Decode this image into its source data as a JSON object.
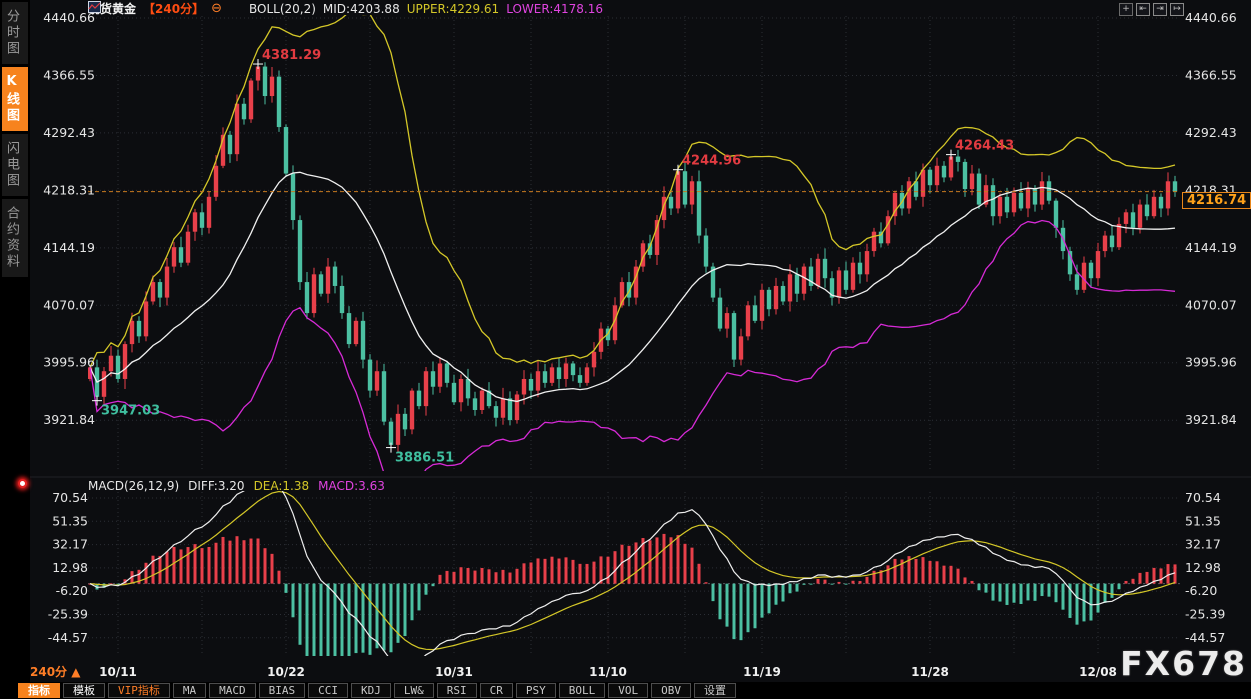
{
  "header": {
    "symbol": "现货黄金",
    "period": "【240分】",
    "minus_icon": "⊖",
    "boll_label": "BOLL(20,2)",
    "mid": "MID:4203.88",
    "upper": "UPPER:4229.61",
    "lower": "LOWER:4178.16"
  },
  "window_controls": [
    {
      "name": "crosshair-icon",
      "glyph": "+"
    },
    {
      "name": "pan-left-icon",
      "glyph": "⇤"
    },
    {
      "name": "pan-play-icon",
      "glyph": "⇥"
    },
    {
      "name": "pan-right-icon",
      "glyph": "↦"
    }
  ],
  "sidebar": {
    "items": [
      {
        "label": "分时图",
        "active": false
      },
      {
        "label": "K线图",
        "active": true
      },
      {
        "label": "闪电图",
        "active": false
      },
      {
        "label": "合约资料",
        "active": false
      }
    ]
  },
  "macd_header": {
    "title": "MACD(26,12,9)",
    "diff": "DIFF:3.20",
    "dea": "DEA:1.38",
    "macd": "MACD:3.63"
  },
  "price_tag": "4216.74",
  "footer": {
    "period": "240分",
    "arrow": "▲"
  },
  "toolbar": {
    "buttons": [
      {
        "label": "指标",
        "style": "active"
      },
      {
        "label": "模板",
        "style": "plain"
      },
      {
        "label": "VIP指标",
        "style": "vip"
      },
      {
        "label": "MA",
        "style": ""
      },
      {
        "label": "MACD",
        "style": ""
      },
      {
        "label": "BIAS",
        "style": ""
      },
      {
        "label": "CCI",
        "style": ""
      },
      {
        "label": "KDJ",
        "style": ""
      },
      {
        "label": "LW&",
        "style": ""
      },
      {
        "label": "RSI",
        "style": ""
      },
      {
        "label": "CR",
        "style": ""
      },
      {
        "label": "PSY",
        "style": ""
      },
      {
        "label": "BOLL",
        "style": ""
      },
      {
        "label": "VOL",
        "style": ""
      },
      {
        "label": "OBV",
        "style": ""
      },
      {
        "label": "设置",
        "style": ""
      }
    ]
  },
  "watermark": "FX678",
  "colors": {
    "up": "#e8404a",
    "down": "#4cc0a2",
    "boll_upper": "#d4c728",
    "boll_mid": "#f0f0f0",
    "boll_lower": "#d62ad6",
    "accent_orange": "#ff7e27",
    "grid": "#2b2e35",
    "axis_text": "#e5e5e5",
    "annotation_high": "#e23b41",
    "annotation_low": "#3fbf9f",
    "last_price_line": "#c87a1e",
    "bg": "#0c0d10"
  },
  "chart_data": {
    "type": "candlestick",
    "title": "现货黄金 240分 K线 + BOLL(20,2) / MACD(26,12,9)",
    "price_axis": {
      "labels": [
        4440.66,
        4366.55,
        4292.43,
        4218.31,
        4144.19,
        4070.07,
        3995.96,
        3921.84
      ]
    },
    "macd_axis": {
      "labels": [
        70.54,
        51.35,
        32.17,
        12.98,
        -6.2,
        -25.39,
        -44.57
      ]
    },
    "x_axis": {
      "labels": [
        "10/11",
        "10/22",
        "10/31",
        "11/10",
        "11/19",
        "11/28",
        "12/08"
      ],
      "label_indices": [
        4,
        28,
        52,
        74,
        96,
        120,
        144
      ]
    },
    "closes": [
      3990,
      3952,
      3985,
      4005,
      3975,
      4020,
      4050,
      4030,
      4075,
      4100,
      4080,
      4120,
      4145,
      4125,
      4165,
      4190,
      4170,
      4210,
      4250,
      4290,
      4265,
      4330,
      4310,
      4360,
      4378,
      4340,
      4365,
      4300,
      4240,
      4180,
      4100,
      4060,
      4110,
      4085,
      4120,
      4095,
      4060,
      4020,
      4050,
      4000,
      3960,
      3985,
      3920,
      3890,
      3930,
      3910,
      3960,
      3940,
      3985,
      3965,
      3995,
      3970,
      3945,
      3975,
      3950,
      3935,
      3960,
      3940,
      3925,
      3950,
      3922,
      3955,
      3975,
      3960,
      3985,
      3970,
      3990,
      3975,
      3995,
      3980,
      3970,
      3990,
      4010,
      4040,
      4025,
      4070,
      4100,
      4080,
      4120,
      4150,
      4135,
      4180,
      4210,
      4195,
      4243,
      4200,
      4230,
      4160,
      4120,
      4080,
      4040,
      4060,
      4000,
      4030,
      4070,
      4050,
      4090,
      4065,
      4095,
      4075,
      4110,
      4085,
      4120,
      4095,
      4130,
      4105,
      4080,
      4115,
      4090,
      4125,
      4110,
      4140,
      4165,
      4150,
      4185,
      4215,
      4195,
      4230,
      4210,
      4245,
      4225,
      4250,
      4235,
      4262,
      4255,
      4220,
      4240,
      4200,
      4225,
      4185,
      4210,
      4190,
      4215,
      4195,
      4220,
      4200,
      4230,
      4205,
      4170,
      4140,
      4110,
      4090,
      4125,
      4105,
      4140,
      4160,
      4145,
      4175,
      4190,
      4170,
      4200,
      4185,
      4210,
      4195,
      4230,
      4216.74
    ],
    "annotations": [
      {
        "index": 1,
        "price": 3947.03,
        "label": "3947.03",
        "type": "low"
      },
      {
        "index": 24,
        "price": 4381.29,
        "label": "4381.29",
        "type": "high"
      },
      {
        "index": 43,
        "price": 3886.51,
        "label": "3886.51",
        "type": "low"
      },
      {
        "index": 84,
        "price": 4244.96,
        "label": "4244.96",
        "type": "high"
      },
      {
        "index": 123,
        "price": 4264.43,
        "label": "4264.43",
        "type": "high"
      }
    ],
    "last_price": 4216.74,
    "indicators": {
      "boll": {
        "period": 20,
        "mult": 2,
        "mid": 4203.88,
        "upper": 4229.61,
        "lower": 4178.16
      },
      "macd": {
        "fast": 12,
        "slow": 26,
        "signal": 9,
        "diff": 3.2,
        "dea": 1.38,
        "macd": 3.63
      }
    }
  }
}
